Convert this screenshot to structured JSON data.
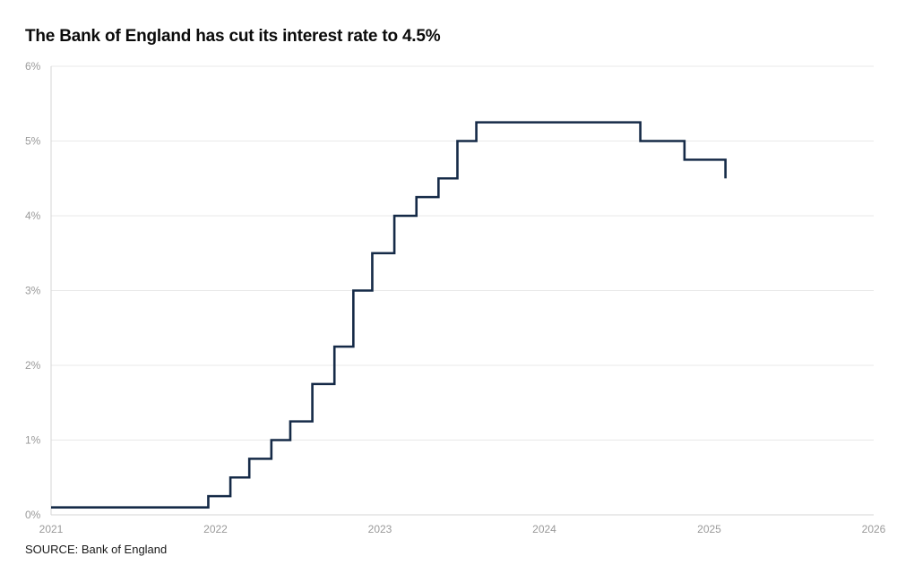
{
  "title": "The Bank of England has cut its interest rate to 4.5%",
  "source": "SOURCE: Bank of England",
  "colors": {
    "line": "#152a47",
    "grid": "#e9e9e9",
    "axis": "#d6d6d6",
    "tick_text": "#9a9a9a"
  },
  "chart_data": {
    "type": "line",
    "step": true,
    "title": "The Bank of England has cut its interest rate to 4.5%",
    "xlabel": "",
    "ylabel": "",
    "xlim": [
      "2021-01-01",
      "2026-01-01"
    ],
    "ylim": [
      0,
      6
    ],
    "x_ticks": [
      "2021",
      "2022",
      "2023",
      "2024",
      "2025",
      "2026"
    ],
    "y_ticks": [
      "0%",
      "1%",
      "2%",
      "3%",
      "4%",
      "5%",
      "6%"
    ],
    "grid": true,
    "series": [
      {
        "points": [
          [
            "2021-01-01",
            0.1
          ],
          [
            "2021-12-16",
            0.25
          ],
          [
            "2022-02-03",
            0.5
          ],
          [
            "2022-03-17",
            0.75
          ],
          [
            "2022-05-05",
            1.0
          ],
          [
            "2022-06-16",
            1.25
          ],
          [
            "2022-08-04",
            1.75
          ],
          [
            "2022-09-22",
            2.25
          ],
          [
            "2022-11-03",
            3.0
          ],
          [
            "2022-12-15",
            3.5
          ],
          [
            "2023-02-02",
            4.0
          ],
          [
            "2023-03-23",
            4.25
          ],
          [
            "2023-05-11",
            4.5
          ],
          [
            "2023-06-22",
            5.0
          ],
          [
            "2023-08-03",
            5.25
          ],
          [
            "2024-08-01",
            5.0
          ],
          [
            "2024-11-07",
            4.75
          ],
          [
            "2025-02-06",
            4.5
          ]
        ]
      }
    ]
  }
}
